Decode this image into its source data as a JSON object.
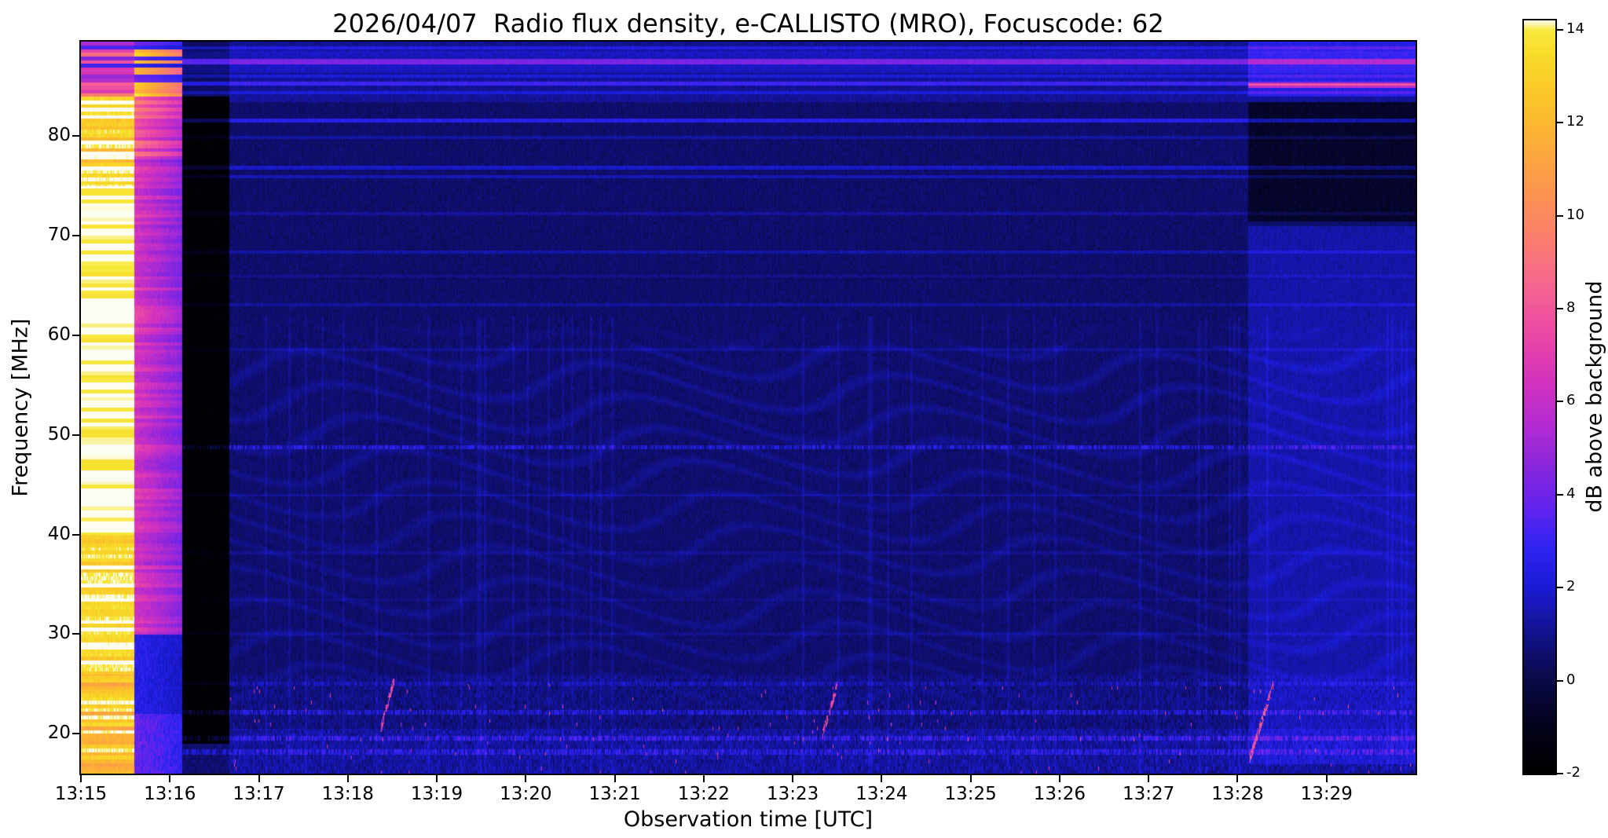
{
  "figure": {
    "background": "#ffffff"
  },
  "chart_data": {
    "type": "heatmap",
    "subtype": "radio-spectrogram",
    "title": "2026/04/07  Radio flux density, e-CALLISTO (MRO), Focuscode: 62",
    "xlabel": "Observation time [UTC]",
    "ylabel": "Frequency [MHz]",
    "x_tick_labels": [
      "13:15",
      "13:16",
      "13:17",
      "13:18",
      "13:19",
      "13:20",
      "13:21",
      "13:22",
      "13:23",
      "13:24",
      "13:25",
      "13:26",
      "13:27",
      "13:28",
      "13:29"
    ],
    "x_tick_interval_sec": 60,
    "x_range": {
      "start": "13:15:00",
      "end": "13:30:00",
      "seconds": 900
    },
    "y_range": [
      16.0,
      89.5
    ],
    "y_ticks": [
      20,
      30,
      40,
      50,
      60,
      70,
      80
    ],
    "grid": false,
    "legend": false,
    "colorbar": {
      "label": "dB above background",
      "ticks": [
        -2,
        0,
        2,
        4,
        6,
        8,
        10,
        12,
        14
      ],
      "vmin": -2,
      "vmax": 14.2,
      "position": "right",
      "stops": [
        {
          "v": -2.0,
          "c": "#000000"
        },
        {
          "v": -1.0,
          "c": "#020218"
        },
        {
          "v": 0.0,
          "c": "#0a0a46"
        },
        {
          "v": 1.0,
          "c": "#12128c"
        },
        {
          "v": 2.0,
          "c": "#1b1bd4"
        },
        {
          "v": 2.8,
          "c": "#2d24f2"
        },
        {
          "v": 3.6,
          "c": "#5b24ee"
        },
        {
          "v": 4.5,
          "c": "#8426e0"
        },
        {
          "v": 5.5,
          "c": "#b32cd0"
        },
        {
          "v": 6.5,
          "c": "#d633bc"
        },
        {
          "v": 7.5,
          "c": "#ec4aa4"
        },
        {
          "v": 8.5,
          "c": "#f56690"
        },
        {
          "v": 9.5,
          "c": "#fa7e6e"
        },
        {
          "v": 10.5,
          "c": "#fb9450"
        },
        {
          "v": 11.5,
          "c": "#fcac38"
        },
        {
          "v": 12.5,
          "c": "#fbc428"
        },
        {
          "v": 13.5,
          "c": "#f7dc28"
        },
        {
          "v": 14.0,
          "c": "#f6ea40"
        },
        {
          "v": 14.2,
          "c": "#fdfcf0"
        }
      ]
    },
    "features": {
      "saturated_band": {
        "t_start": 0,
        "t_end": 36,
        "description": "saturated white/yellow calibration column at 13:15"
      },
      "pink_band": {
        "t_start": 36,
        "t_end": 68,
        "description": "magenta/pink column near 13:16, blue below 30 MHz, yellow rows above 84 MHz"
      },
      "dark_band": {
        "t_start": 68,
        "t_end": 100,
        "description": "near-black column 13:16-13:17"
      },
      "right_region": {
        "t_start": 787,
        "magenta_line_f": 85.1,
        "description": "brighter blue after 13:28, dark 72-84 MHz, magenta lines above 84 MHz"
      },
      "horizontal_lines": [
        {
          "f": 88.9,
          "w": 0.15,
          "boost": 1.2
        },
        {
          "f": 87.5,
          "w": 0.28,
          "boost": 2.6
        },
        {
          "f": 87.5,
          "w": 1.1,
          "boost": 0.5
        },
        {
          "f": 86.1,
          "w": 0.15,
          "boost": 1.0
        },
        {
          "f": 85.3,
          "w": 0.18,
          "boost": 1.9
        },
        {
          "f": 84.4,
          "w": 0.15,
          "boost": 1.0
        },
        {
          "f": 81.6,
          "w": 0.2,
          "boost": 2.0
        },
        {
          "f": 79.9,
          "w": 0.15,
          "boost": 0.8
        },
        {
          "f": 76.9,
          "w": 0.2,
          "boost": 1.3
        },
        {
          "f": 76.0,
          "w": 0.15,
          "boost": 1.0
        },
        {
          "f": 72.3,
          "w": 0.15,
          "boost": 0.7
        },
        {
          "f": 68.4,
          "w": 0.18,
          "boost": 0.85
        },
        {
          "f": 66.0,
          "w": 0.15,
          "boost": 0.5
        },
        {
          "f": 63.1,
          "w": 0.15,
          "boost": 0.7
        },
        {
          "f": 58.6,
          "w": 0.15,
          "boost": 0.5
        },
        {
          "f": 48.8,
          "w": 0.22,
          "boost": 1.9,
          "speckle": true
        },
        {
          "f": 44.0,
          "w": 0.15,
          "boost": 0.6
        },
        {
          "f": 38.2,
          "w": 0.15,
          "boost": 0.4
        },
        {
          "f": 33.5,
          "w": 0.15,
          "boost": 0.35
        },
        {
          "f": 30.1,
          "w": 0.15,
          "boost": 0.45
        },
        {
          "f": 25.1,
          "w": 0.2,
          "boost": 0.9,
          "speckle": true
        },
        {
          "f": 22.2,
          "w": 0.25,
          "boost": 1.6,
          "speckle": true
        },
        {
          "f": 19.6,
          "w": 0.25,
          "boost": 1.7,
          "speckle": true
        },
        {
          "f": 18.2,
          "w": 0.3,
          "boost": 1.5,
          "speckle": true
        }
      ],
      "bursts": [
        {
          "t0": 202,
          "dur": 9,
          "f0": 20.5,
          "f1": 25.5,
          "w": 0.5,
          "amp": 6.0
        },
        {
          "t0": 500,
          "dur": 10,
          "f0": 20.0,
          "f1": 25.0,
          "w": 0.5,
          "amp": 6.2
        },
        {
          "t0": 788,
          "dur": 16,
          "f0": 17.5,
          "f1": 25.0,
          "w": 0.5,
          "amp": 6.5
        }
      ],
      "noise_floor": {
        "base": 0.15,
        "amp": 0.6
      }
    }
  }
}
